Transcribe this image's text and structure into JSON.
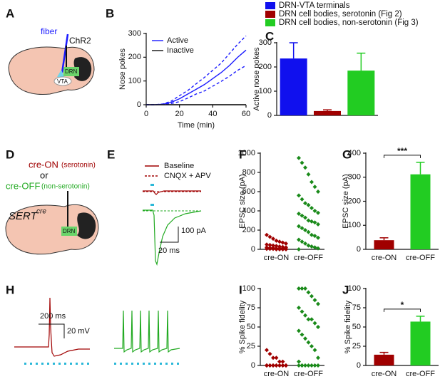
{
  "chart_data": [
    {
      "type": "line",
      "label": "B",
      "xlabel": "Time (min)",
      "ylabel": "Nose pokes",
      "x": [
        0,
        5,
        10,
        15,
        20,
        25,
        30,
        35,
        40,
        45,
        50,
        55,
        60
      ],
      "series": [
        {
          "name": "Active",
          "color": "#1a1aff",
          "values": [
            0,
            0,
            2,
            10,
            25,
            45,
            65,
            85,
            110,
            135,
            165,
            200,
            230
          ],
          "band": {
            "upper": [
              0,
              0,
              3,
              15,
              38,
              60,
              88,
              115,
              145,
              175,
              215,
              255,
              290
            ],
            "lower": [
              0,
              0,
              1,
              5,
              13,
              28,
              45,
              58,
              78,
              98,
              120,
              145,
              165
            ]
          }
        },
        {
          "name": "Inactive",
          "color": "#111111",
          "values": [
            0,
            0,
            0,
            0,
            0,
            0,
            0,
            0,
            0,
            0,
            0,
            0,
            0
          ]
        }
      ],
      "xlim": [
        0,
        60
      ],
      "xticks": [
        0,
        20,
        40,
        60
      ],
      "ylim": [
        0,
        300
      ],
      "yticks": [
        0,
        100,
        200,
        300
      ],
      "legend": "upper left"
    },
    {
      "type": "bar",
      "label": "C",
      "ylabel": "Active nose pokes",
      "series": [
        {
          "name": "DRN-VTA terminals",
          "color": "#1010ee",
          "values": [
            235
          ],
          "errors": [
            65
          ]
        },
        {
          "name": "DRN cell bodies, serotonin (Fig 2)",
          "color": "#a00000",
          "values": [
            18
          ],
          "errors": [
            5
          ]
        },
        {
          "name": "DRN cell bodies, non-serotonin (Fig 3)",
          "color": "#22cc22",
          "values": [
            185
          ],
          "errors": [
            72
          ]
        }
      ],
      "ylim": [
        0,
        300
      ],
      "yticks": [
        0,
        100,
        200,
        300
      ],
      "legend": "above"
    },
    {
      "type": "strip",
      "label": "F",
      "ylabel": "EPSC size (pA)",
      "categories": [
        "cre-ON",
        "cre-OFF"
      ],
      "series": [
        {
          "color": "#a00000",
          "values": [
            150,
            130,
            110,
            90,
            80,
            70,
            60,
            50,
            45,
            40,
            35,
            30,
            25,
            20,
            20,
            15,
            15,
            10,
            10,
            10,
            5,
            5,
            5,
            5,
            0,
            0,
            0,
            0
          ]
        },
        {
          "color": "#1a8a1a",
          "values": [
            950,
            900,
            850,
            780,
            700,
            650,
            600,
            560,
            520,
            480,
            460,
            430,
            400,
            380,
            370,
            350,
            330,
            300,
            290,
            280,
            260,
            240,
            220,
            200,
            180,
            150,
            140,
            120,
            100,
            80,
            60,
            40,
            30,
            20,
            10,
            0
          ]
        }
      ],
      "ylim": [
        0,
        1000
      ],
      "yticks": [
        0,
        200,
        400,
        600,
        800,
        1000
      ]
    },
    {
      "type": "bar",
      "label": "G",
      "ylabel": "EPSC size (pA)",
      "categories": [
        "cre-ON",
        "cre-OFF"
      ],
      "values": [
        38,
        312
      ],
      "errors": [
        10,
        50
      ],
      "colors": [
        "#a00000",
        "#22cc22"
      ],
      "annotation": "***",
      "ylim": [
        0,
        400
      ],
      "yticks": [
        0,
        100,
        200,
        300,
        400
      ]
    },
    {
      "type": "strip",
      "label": "I",
      "ylabel": "% Spike fidelity",
      "categories": [
        "cre-ON",
        "cre-OFF"
      ],
      "series": [
        {
          "color": "#a00000",
          "values": [
            20,
            15,
            10,
            10,
            5,
            5,
            0,
            0,
            0,
            0,
            0,
            0,
            0,
            0,
            0,
            0,
            0,
            0,
            0,
            0,
            0,
            0
          ]
        },
        {
          "color": "#1a8a1a",
          "values": [
            100,
            100,
            100,
            95,
            90,
            85,
            80,
            75,
            70,
            65,
            60,
            60,
            55,
            50,
            45,
            40,
            35,
            30,
            25,
            20,
            10,
            5,
            0,
            0,
            0,
            0,
            0,
            0,
            0,
            0
          ]
        }
      ],
      "ylim": [
        0,
        100
      ],
      "yticks": [
        0,
        25,
        50,
        75,
        100
      ]
    },
    {
      "type": "bar",
      "label": "J",
      "ylabel": "% Spike fidelity",
      "categories": [
        "cre-ON",
        "cre-OFF"
      ],
      "values": [
        14,
        57
      ],
      "errors": [
        3,
        7
      ],
      "colors": [
        "#a00000",
        "#22cc22"
      ],
      "annotation": "*",
      "ylim": [
        0,
        100
      ],
      "yticks": [
        0,
        25,
        50,
        75,
        100
      ]
    }
  ],
  "diagrams": {
    "panel_A": {
      "label": "A",
      "fiber": "fiber",
      "opsin": "ChR2",
      "drn": "DRN",
      "vta": "VTA"
    },
    "panel_D": {
      "label": "D",
      "cre_on": "cre-ON",
      "cre_on_note": "(serotonin)",
      "or": "or",
      "cre_off": "cre-OFF",
      "cre_off_note": "(non-serotonin)",
      "mouse": "SERT",
      "mouse_sup": "cre",
      "drn": "DRN"
    },
    "panel_E": {
      "label": "E",
      "legend": [
        "Baseline",
        "CNQX + APV"
      ],
      "scale_y": "100 pA",
      "scale_x": "20 ms"
    },
    "panel_H": {
      "label": "H",
      "scale_x": "200 ms",
      "scale_y": "20 mV"
    }
  }
}
